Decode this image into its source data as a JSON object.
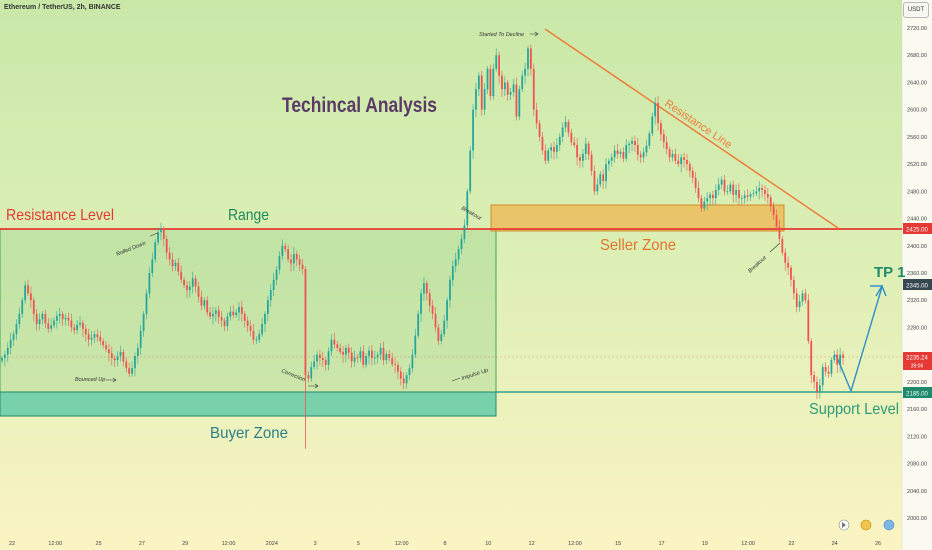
{
  "header": {
    "symbol_title": "Ethereum / TetherUS, 2h, BINANCE",
    "currency_badge": "USDT"
  },
  "chart_data": {
    "type": "candlestick",
    "title": "Techincal Analysis",
    "y_ticks": [
      "2720.00",
      "2680.00",
      "2640.00",
      "2600.00",
      "2560.00",
      "2520.00",
      "2480.00",
      "2440.00",
      "2400.00",
      "2360.00",
      "2320.00",
      "2280.00",
      "2240.00",
      "2200.00",
      "2160.00",
      "2120.00",
      "2080.00",
      "2040.00",
      "2000.00"
    ],
    "x_ticks": [
      "22",
      "12:00",
      "25",
      "27",
      "29",
      "12:00",
      "2024",
      "3",
      "5",
      "12:00",
      "8",
      "10",
      "12",
      "12:00",
      "15",
      "17",
      "19",
      "12:00",
      "22",
      "24",
      "26"
    ],
    "levels": [
      {
        "label": "Resistance Level",
        "price": 2425.0,
        "price_label": "2425.00",
        "color": "#e53935"
      },
      {
        "label": "Support Level",
        "price": 2185.0,
        "price_label": "2185.00",
        "color": "#26a69a"
      }
    ],
    "current_price": {
      "price": 2235.24,
      "label": "2235.24",
      "countdown": "39:06"
    },
    "target": {
      "label": "TP 1",
      "price": 2345.0,
      "price_label": "2345.00"
    },
    "zones": [
      {
        "label": "Range",
        "from": 2185,
        "to": 2425
      },
      {
        "label": "Buyer Zone",
        "from": 2150,
        "to": 2185
      },
      {
        "label": "Seller Zone",
        "from": 2420,
        "to": 2462
      }
    ],
    "trendline": {
      "label": "Resistance Line",
      "from_price": 2725,
      "to_price": 2430
    },
    "annotations": [
      "Rolled Down",
      "Bounced Up",
      "Correction",
      "Impulse Up",
      "Breakout",
      "Started To Decline",
      "Breakout"
    ],
    "series": [
      {
        "name": "ETHUSDT",
        "values": [
          2235,
          2240,
          2250,
          2262,
          2270,
          2285,
          2300,
          2320,
          2342,
          2330,
          2320,
          2300,
          2285,
          2292,
          2300,
          2286,
          2278,
          2283,
          2290,
          2297,
          2300,
          2292,
          2294,
          2290,
          2280,
          2276,
          2284,
          2287,
          2278,
          2270,
          2262,
          2265,
          2270,
          2266,
          2260,
          2254,
          2248,
          2242,
          2235,
          2232,
          2238,
          2244,
          2230,
          2220,
          2212,
          2220,
          2238,
          2250,
          2275,
          2300,
          2330,
          2360,
          2380,
          2405,
          2420,
          2425,
          2410,
          2390,
          2380,
          2370,
          2375,
          2362,
          2350,
          2342,
          2335,
          2340,
          2352,
          2340,
          2325,
          2312,
          2320,
          2302,
          2296,
          2300,
          2305,
          2295,
          2290,
          2282,
          2296,
          2303,
          2298,
          2302,
          2310,
          2300,
          2290,
          2282,
          2275,
          2262,
          2262,
          2270,
          2285,
          2300,
          2320,
          2335,
          2350,
          2365,
          2385,
          2400,
          2395,
          2380,
          2374,
          2388,
          2380,
          2372,
          2366,
          2210,
          2205,
          2222,
          2230,
          2240,
          2235,
          2232,
          2225,
          2245,
          2262,
          2255,
          2250,
          2244,
          2240,
          2250,
          2243,
          2230,
          2236,
          2235,
          2245,
          2225,
          2238,
          2246,
          2235,
          2236,
          2240,
          2250,
          2232,
          2241,
          2235,
          2226,
          2225,
          2215,
          2205,
          2198,
          2210,
          2220,
          2240,
          2268,
          2300,
          2330,
          2345,
          2330,
          2312,
          2300,
          2280,
          2260,
          2270,
          2290,
          2320,
          2350,
          2370,
          2380,
          2395,
          2410,
          2430,
          2480,
          2540,
          2600,
          2630,
          2650,
          2600,
          2630,
          2660,
          2620,
          2660,
          2680,
          2650,
          2630,
          2640,
          2622,
          2626,
          2637,
          2590,
          2630,
          2650,
          2660,
          2690,
          2660,
          2600,
          2580,
          2560,
          2540,
          2525,
          2540,
          2545,
          2538,
          2548,
          2560,
          2574,
          2582,
          2566,
          2552,
          2548,
          2530,
          2525,
          2535,
          2550,
          2534,
          2510,
          2480,
          2490,
          2505,
          2495,
          2520,
          2525,
          2530,
          2540,
          2535,
          2538,
          2528,
          2548,
          2550,
          2554,
          2548,
          2534,
          2530,
          2537,
          2547,
          2565,
          2590,
          2610,
          2580,
          2564,
          2552,
          2542,
          2530,
          2535,
          2525,
          2520,
          2530,
          2526,
          2520,
          2510,
          2500,
          2485,
          2470,
          2455,
          2465,
          2470,
          2475,
          2470,
          2482,
          2490,
          2497,
          2480,
          2480,
          2490,
          2475,
          2482,
          2470,
          2470,
          2474,
          2472,
          2476,
          2477,
          2480,
          2485,
          2482,
          2476,
          2471,
          2458,
          2445,
          2428,
          2410,
          2390,
          2375,
          2368,
          2350,
          2330,
          2310,
          2318,
          2330,
          2320,
          2260,
          2210,
          2200,
          2185,
          2195,
          2222,
          2215,
          2212,
          2232,
          2240,
          2225,
          2240,
          2235
        ]
      }
    ]
  },
  "text_colors": {
    "resistance": "#e53935",
    "range": "#1f8a5b",
    "seller": "#e0762c",
    "buyer": "#2a7f8a",
    "support": "#2e9b7a",
    "tp": "#1f8a6b",
    "title": "#5b3a66",
    "trend": "#ef7d3a"
  }
}
